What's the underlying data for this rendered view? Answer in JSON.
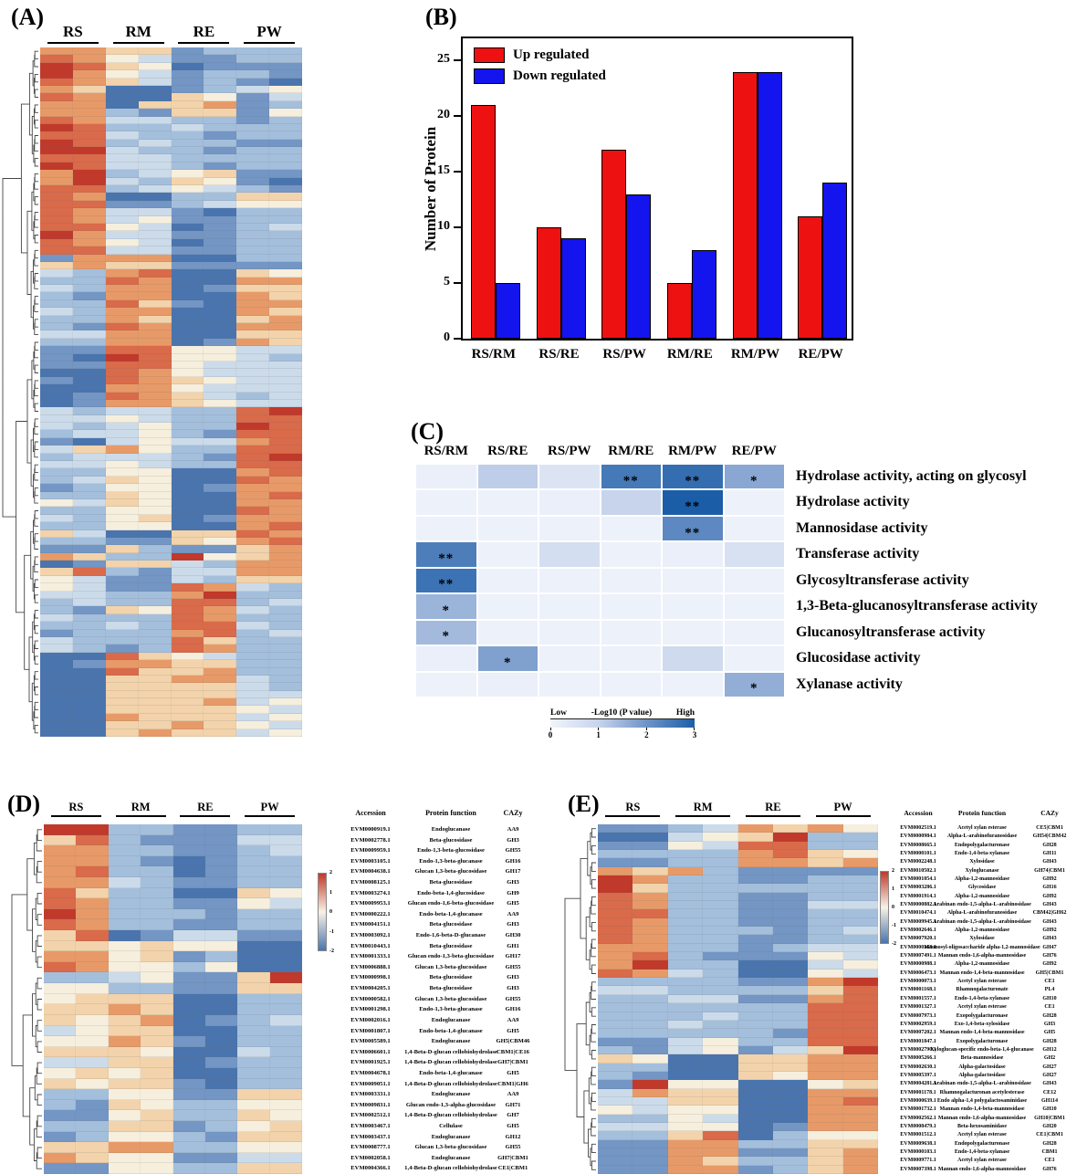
{
  "panels": {
    "A": {
      "label": "(A)"
    },
    "B": {
      "label": "(B)"
    },
    "C": {
      "label": "(C)"
    },
    "D": {
      "label": "(D)"
    },
    "E": {
      "label": "(E)"
    }
  },
  "palette": {
    "a": "#c0392b",
    "b": "#d96a4a",
    "c": "#e79a68",
    "d": "#f3d3ab",
    "e": "#f6efde",
    "f": "#ccdbea",
    "g": "#a4bfdc",
    "h": "#7396c4",
    "i": "#4a74ad"
  },
  "colorbar_stops": [
    "#c0392b",
    "#f7f2e6",
    "#4a74ad"
  ],
  "chart_data": [
    {
      "type": "bar",
      "panel": "B",
      "categories": [
        "RS/RM",
        "RS/RE",
        "RS/PW",
        "RM/RE",
        "RM/PW",
        "RE/PW"
      ],
      "series": [
        {
          "name": "Up regulated",
          "color": "#ee1111",
          "values": [
            21,
            10,
            17,
            5,
            24,
            11
          ]
        },
        {
          "name": "Down regulated",
          "color": "#1414ee",
          "values": [
            5,
            9,
            13,
            8,
            24,
            14
          ]
        }
      ],
      "ylabel": "Number of Protein",
      "xlabel": "",
      "ylim": [
        0,
        27
      ],
      "yticks": [
        0,
        5,
        10,
        15,
        20,
        25
      ],
      "legend_position": "top-left",
      "grid": false
    },
    {
      "type": "heatmap",
      "panel": "C",
      "columns": [
        "RS/RM",
        "RS/RE",
        "RS/PW",
        "RM/RE",
        "RM/PW",
        "RE/PW"
      ],
      "row_labels": [
        "Hydrolase activity, acting on glycosyl",
        "Hydrolase activity",
        "Mannosidase activity",
        "Transferase activity",
        "Glycosyltransferase activity",
        "1,3-Beta-glucanosyltransferase activity",
        "Glucanosyltransferase activity",
        "Glucosidase activity",
        "Xylanase activity"
      ],
      "values": [
        [
          0.15,
          1.1,
          0.5,
          2.5,
          2.7,
          1.7
        ],
        [
          0.1,
          0.1,
          0.15,
          1.0,
          3.0,
          0.1
        ],
        [
          0.1,
          0.1,
          0.1,
          0.1,
          2.2,
          0.1
        ],
        [
          2.4,
          0.1,
          0.7,
          0.1,
          0.15,
          0.6
        ],
        [
          2.6,
          0.1,
          0.1,
          0.1,
          0.1,
          0.1
        ],
        [
          1.5,
          0.1,
          0.1,
          0.1,
          0.1,
          0.1
        ],
        [
          1.4,
          0.1,
          0.1,
          0.1,
          0.1,
          0.1
        ],
        [
          0.15,
          1.8,
          0.1,
          0.1,
          0.8,
          0.1
        ],
        [
          0.1,
          0.15,
          0.1,
          0.1,
          0.1,
          1.6
        ]
      ],
      "stars": [
        [
          "",
          "",
          "",
          "**",
          "**",
          "*"
        ],
        [
          "",
          "",
          "",
          "",
          "**",
          ""
        ],
        [
          "",
          "",
          "",
          "",
          "**",
          ""
        ],
        [
          "**",
          "",
          "",
          "",
          "",
          ""
        ],
        [
          "**",
          "",
          "",
          "",
          "",
          ""
        ],
        [
          "*",
          "",
          "",
          "",
          "",
          ""
        ],
        [
          "*",
          "",
          "",
          "",
          "",
          ""
        ],
        [
          "",
          "*",
          "",
          "",
          "",
          ""
        ],
        [
          "",
          "",
          "",
          "",
          "",
          "*"
        ]
      ],
      "scale_low": "Low",
      "scale_label": "-Log10 (P value)",
      "scale_high": "High",
      "scale_ticks": [
        0,
        1,
        2,
        3
      ],
      "color_stops": [
        "#f1f4fb",
        "#c7d4ec",
        "#6e93c7",
        "#1b5ea7"
      ]
    },
    {
      "type": "heatmap",
      "panel": "A",
      "column_groups": [
        "RS",
        "RM",
        "RE",
        "PW"
      ],
      "columns_per_group": 2,
      "level_encoding": "a=high(red) to i=low(blue), z-score approx 2 to -2",
      "rows": [
        "ccddhggg",
        "bcefhhgg",
        "abdeihhh",
        "acefhggh",
        "bcdfhghi",
        "cdiihgfe",
        "bciidehf",
        "cciddchg",
        "ccghddhe",
        "bcffgghg",
        "abggfggg",
        "bbfgghgg",
        "abgfgghh",
        "aafgghgg",
        "bbffgggg",
        "abffghgg",
        "cagfedhh",
        "cafgdehi",
        "bbgfefgh",
        "bciiggdd",
        "bbhhgfee",
        "bcffhigg",
        "bcfehhgg",
        "bbefihgf",
        "acffhhgg",
        "bcefihgg",
        "bbffhhgg",
        "hccciigg",
        "dcddhhhh",
        "fgcbiide",
        "ggbciicc",
        "fgccihdd",
        "ghcciicd",
        "ggbdhicc",
        "fgcciicd",
        "ggcdiidc",
        "ghbciicc",
        "ffcciidd",
        "ggccihcd",
        "hhbbeeff",
        "hiabeefg",
        "hhbbefff",
        "iibcefff",
        "hibcdeff",
        "iiccefff",
        "ihbcdfgf",
        "ihccdeff",
        "fgffggba",
        "ffefggbb",
        "fgfeggab",
        "gffeghbb",
        "hifeffcb",
        "fdceggbb",
        "gfffghba",
        "ffefggbb",
        "ggeeiicb",
        "gfdeiibc",
        "hgeeihcc",
        "ggdeiicb",
        "efdeiicc",
        "ggeeiibc",
        "fgedihcc",
        "ggeeiicb",
        "dfiiddbc",
        "gghhdecb",
        "hhdghhdc",
        "cdggaedc",
        "ihddfgcc",
        "dbghffcc",
        "efhhfgdd",
        "efhhbcfg",
        "ffggcagg",
        "gfggbbgf",
        "ghdebcfg",
        "fgggbcgg",
        "ggfgbbfg",
        "hgggcbgf",
        "fgggbdgg",
        "fghgbcgg",
        "iibdefgg",
        "ihccddgg",
        "iibddcgg",
        "iiddccfg",
        "iiddddfg",
        "iiddddff",
        "iidddcfe",
        "iiddddef",
        "iicdddfe",
        "iiddcdef",
        "iidcddfe"
      ]
    },
    {
      "type": "heatmap",
      "panel": "D",
      "column_groups": [
        "RS",
        "RM",
        "RE",
        "PW"
      ],
      "columns_per_group": 2,
      "table_headers": [
        "Accession",
        "Protein function",
        "CAZy"
      ],
      "colorbar_ticks": [
        2,
        1,
        0,
        -1,
        -2
      ],
      "rows": [
        [
          "EVM0000919.1",
          "Endoglucanase",
          "AA9",
          "aagghhgg"
        ],
        [
          "EVM0002778.1",
          "Beta-glucosidase",
          "GH3",
          "dbghhhff"
        ],
        [
          "EVM0009959.1",
          "Endo-1,3-beta-glucosidase",
          "GH55",
          "ccgghhgf"
        ],
        [
          "EVM0003105.1",
          "Endo-1,3-beta-glucanase",
          "GH16",
          "ccghihgg"
        ],
        [
          "EVM0004638.1",
          "Glucan 1,3-beta-glucosidase",
          "GH17",
          "cbggihgg"
        ],
        [
          "EVM0008125.1",
          "Beta-glucosidase",
          "GH3",
          "ccfghhgg"
        ],
        [
          "EVM0003274.1",
          "Endo-beta-1,4-glucosidase",
          "GH9",
          "bdggiide"
        ],
        [
          "EVM0009953.1",
          "Glucan endo-1,6-beta-glucosidase",
          "GH5",
          "bcgghhef"
        ],
        [
          "EVM0000222.1",
          "Endo-beta-1,4-glucanase",
          "AA9",
          "acggghgg"
        ],
        [
          "EVM0004151.1",
          "Beta-glucosidase",
          "GH3",
          "bcgghhgg"
        ],
        [
          "EVM0003092.1",
          "Endo-1,6-beta-D-glucanase",
          "GH30",
          "dbihffhh"
        ],
        [
          "EVM0010443.1",
          "Beta-glucosidase",
          "GH1",
          "ddedeeii"
        ],
        [
          "EVM0001333.1",
          "Glucan endo-1,3-beta-glucosidase",
          "GH17",
          "ccedhgii"
        ],
        [
          "EVM0006888.1",
          "Glucan 1,3-beta-glucosidase",
          "GH55",
          "bceegeii"
        ],
        [
          "EVM0000998.1",
          "Beta-glucosidase",
          "GH3",
          "ggfehhda"
        ],
        [
          "EVM0004205.1",
          "Beta-glucosidase",
          "GH3",
          "eegghhdd"
        ],
        [
          "EVM0000582.1",
          "Glucan 1,3-beta-glucosidase",
          "GH55",
          "edddiigg"
        ],
        [
          "EVM0001298.1",
          "Endo-1,3-beta-glucanase",
          "GH16",
          "ddcdiigg"
        ],
        [
          "EVM0002016.1",
          "Endoglucanase",
          "AA9",
          "dedcihgf"
        ],
        [
          "EVM0001807.1",
          "Endo-beta-1,4-glucanase",
          "GH5",
          "feddiigg"
        ],
        [
          "EVM0005589.1",
          "Endoglucanase",
          "GH5|CBM46",
          "eecdhigg"
        ],
        [
          "EVM0006601.1",
          "1,4-Beta-D-glucan cellobiohydrolase",
          "CBM1|CE16",
          "dddeiifg"
        ],
        [
          "EVM0001925.1",
          "1,4-Beta-D-glucan cellobiohydrolase",
          "GH7|CBM1",
          "ffddihgg"
        ],
        [
          "EVM0004678.1",
          "Endo-beta-1,4-glucanase",
          "GH5",
          "edediigg"
        ],
        [
          "EVM0009051.1",
          "1,4-Beta-D-glucan cellobiohydrolase",
          "CBM1|GH6",
          "deddhigg"
        ],
        [
          "EVM0003331.1",
          "Endoglucanase",
          "AA9",
          "ggeehhdd"
        ],
        [
          "EVM0009831.1",
          "Glucan endo-1,3-alpha-glucosidase",
          "GH71",
          "ghdeggee"
        ],
        [
          "EVM0002512.1",
          "1,4-Beta-D-glucan cellobiohydrolase",
          "GH7",
          "hhedggde"
        ],
        [
          "EVM0003467.1",
          "Cellulase",
          "GH5",
          "ggddhged"
        ],
        [
          "EVM0003437.1",
          "Endoglucanase",
          "GH12",
          "hgeeghdd"
        ],
        [
          "EVM0008777.1",
          "Glucan 1,3-beta-glucosidase",
          "GH55",
          "ddccggee"
        ],
        [
          "EVM0002058.1",
          "Endoglucanase",
          "GH7|CBM1",
          "cdeehhff"
        ],
        [
          "EVM0004366.1",
          "1,4-Beta-D-glucan cellobiohydrolase",
          "CE1|CBM1",
          "hheeggdd"
        ]
      ]
    },
    {
      "type": "heatmap",
      "panel": "E",
      "column_groups": [
        "RS",
        "RM",
        "RE",
        "PW"
      ],
      "columns_per_group": 2,
      "table_headers": [
        "Accession",
        "Protein function",
        "CAZy"
      ],
      "colorbar_ticks": [
        2,
        1,
        0,
        -1,
        -2
      ],
      "rows": [
        [
          "EVM0002519.1",
          "Acetyl xylan esterase",
          "CE5|CBM1",
          "hhgfcdce"
        ],
        [
          "EVM0000984.1",
          "Alpha-L-arabinofuranosidase",
          "GH54|CBM42",
          "iifedagg"
        ],
        [
          "EVM0008665.1",
          "Endopolygalacturonase",
          "GH28",
          "hhefbbgg"
        ],
        [
          "EVM0000101.1",
          "Endo-1,4-beta-xylanase",
          "GH11",
          "ggggcbde"
        ],
        [
          "EVM0002248.1",
          "Xylosidase",
          "GH43",
          "hhggccdc"
        ],
        [
          "EVM0010502.1",
          "Xyloglucanase",
          "GH74|CBM1",
          "cdcghhhh"
        ],
        [
          "EVM0001054.1",
          "Alpha-1,2-mannosidase",
          "GH92",
          "acgghhgg"
        ],
        [
          "EVM0003286.1",
          "Glycosidase",
          "GH16",
          "adgggggg"
        ],
        [
          "EVM0001914.1",
          "Alpha-1,2-mannosidase",
          "GH92",
          "bcgghhgg"
        ],
        [
          "EVM0000882.1",
          "Arabinan endo-1,5-alpha-L-arabinosidase",
          "GH43",
          "bcgghhff"
        ],
        [
          "EVM0010474.1",
          "Alpha-L-arabinofuranosidase",
          "CBM42|GH62",
          "bbgghhgg"
        ],
        [
          "EVM0009945.1",
          "Arabinan endo-1,5-alpha-L-arabinosidase",
          "GH43",
          "bcgghhgg"
        ],
        [
          "EVM0002646.1",
          "Alpha-1,2-mannosidase",
          "GH92",
          "bcggghgf"
        ],
        [
          "EVM0007920.1",
          "Xylosidase",
          "GH43",
          "bcgghhgg"
        ],
        [
          "EVM0000168.1",
          "Mannosyl-oligosaccharide alpha-1,2-mannosidase",
          "GH47",
          "ccgghgff"
        ],
        [
          "EVM0007491.1",
          "Mannan endo-1,6-alpha-mannosidase",
          "GH76",
          "cbghhhef"
        ],
        [
          "EVM0000988.1",
          "Alpha-1,2-mannosidase",
          "GH92",
          "caggiife"
        ],
        [
          "EVM0006473.1",
          "Mannan endo-1,4-beta-mannosidase",
          "GH5|CBM1",
          "bcfgiief"
        ],
        [
          "EVM0000073.1",
          "Acetyl xylan esterase",
          "CE1",
          "gggghhca"
        ],
        [
          "EVM0001168.1",
          "Rhamnogalacturonate",
          "PL4",
          "ffggggdb"
        ],
        [
          "EVM0001557.1",
          "Endo-1,4-beta-xylanase",
          "GH10",
          "ggffhhcb"
        ],
        [
          "EVM0001327.1",
          "Acetyl xylan esterase",
          "CE1",
          "ggggggbb"
        ],
        [
          "EVM0007973.1",
          "Exopolygalacturonase",
          "GH28",
          "gggfggbb"
        ],
        [
          "EVM0002959.1",
          "Exo-1,4-beta-xylosidase",
          "GH3",
          "ggfgggbb"
        ],
        [
          "EVM0007202.1",
          "Mannan endo-1,4-beta-mannosidase",
          "GH5",
          "ggggghbb"
        ],
        [
          "EVM0001847.1",
          "Exopolygalacturonase",
          "GH28",
          "hhfeggbb"
        ],
        [
          "EVM0002790.1",
          "Xyloglucan-specific endo-beta-1,4-glucanase",
          "GH12",
          "ghfehfda"
        ],
        [
          "EVM0005266.1",
          "Beta-mannosidase",
          "GH2",
          "deiiddcc"
        ],
        [
          "EVM0002630.1",
          "Alpha-galactosidase",
          "GH27",
          "ggiiddcc"
        ],
        [
          "EVM0005397.1",
          "Alpha-galactosidase",
          "GH27",
          "ghiidecc"
        ],
        [
          "EVM0004281.1",
          "Arabinan endo-1,5-alpha-L-arabinosidase",
          "GH43",
          "haeeiied"
        ],
        [
          "EVM0001178.1",
          "Rhamnogalacturonan acetylesterase",
          "CE12",
          "fcddiicc"
        ],
        [
          "EVM0000639.1",
          "Endo alpha-1,4 polygalactosaminidase",
          "GH114",
          "ffddiicb"
        ],
        [
          "EVM0001732.1",
          "Mannan endo-1,4-beta-mannosidase",
          "GH10",
          "efeeiicc"
        ],
        [
          "EVM0002562.1",
          "Mannan endo-1,6-alpha-mannosidase",
          "GH10|CBM1",
          "ggefiicc"
        ],
        [
          "EVM0008479.1",
          "Beta-hexosaminidase",
          "GH20",
          "ffeeihcc"
        ],
        [
          "EVM0001512.1",
          "Acetyl xylan esterase",
          "CE1|CBM1",
          "ggdbigee"
        ],
        [
          "EVM0009638.1",
          "Endopolygalacturonase",
          "GH28",
          "hhccggdd"
        ],
        [
          "EVM0000103.1",
          "Endo-1,4-beta-xylanase",
          "CBM1",
          "hhcchhdc"
        ],
        [
          "EVM0009771.1",
          "Acetyl xylan esterase",
          "CE1",
          "hhcdggdc"
        ],
        [
          "EVM0007398.1",
          "Mannan endo-1,6-alpha-mannosidase",
          "GH76",
          "hhcchgdc"
        ]
      ]
    }
  ]
}
